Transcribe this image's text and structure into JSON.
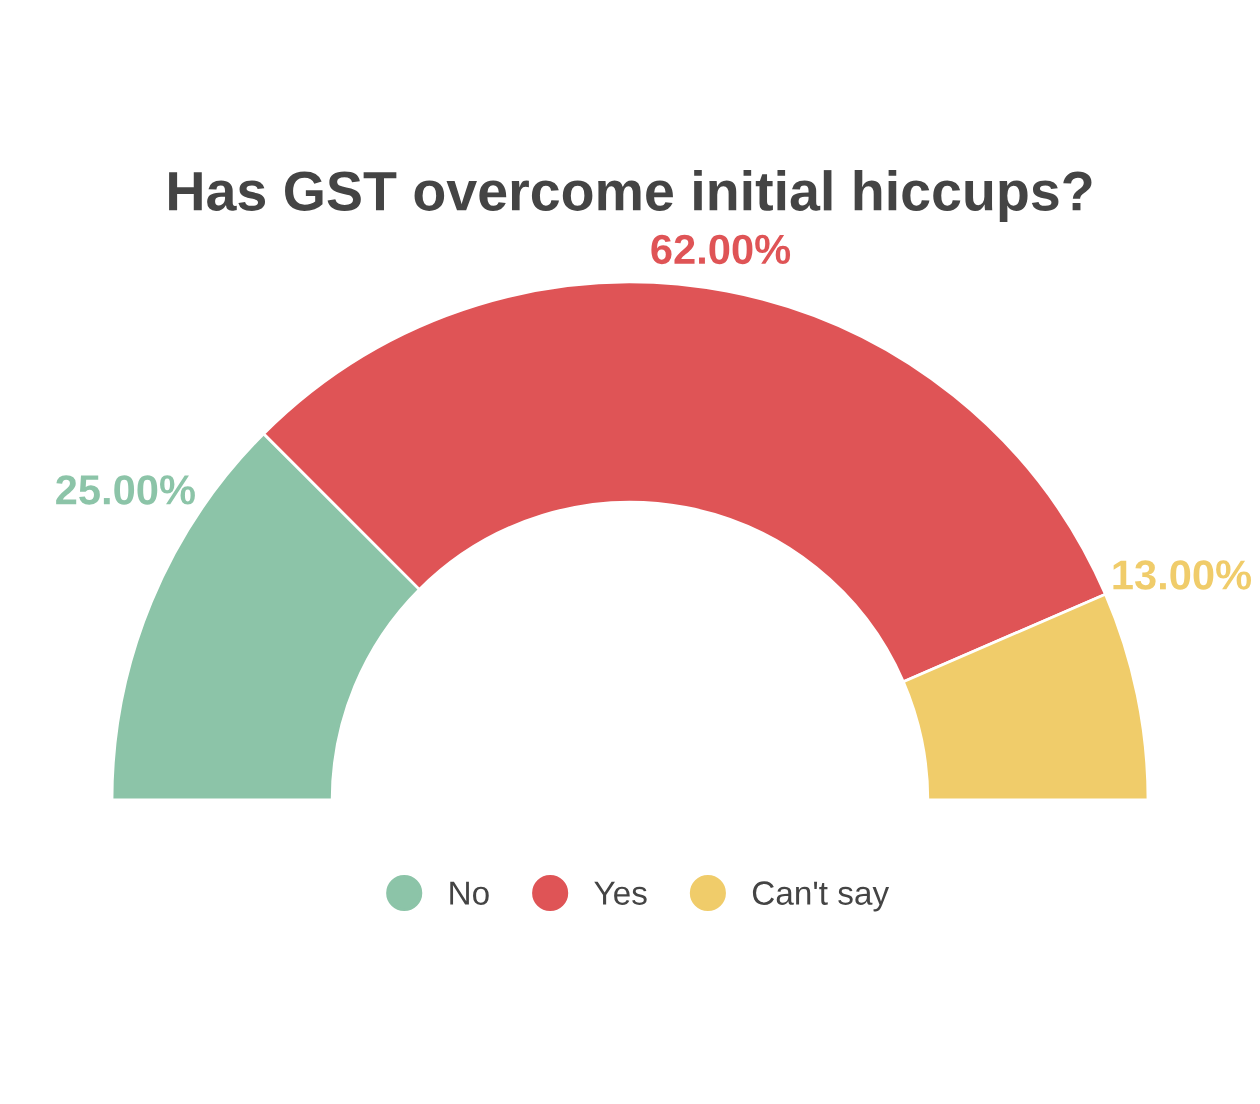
{
  "chart_data": {
    "type": "donut",
    "title": "Has GST overcome initial hiccups?",
    "categories": [
      "No",
      "Yes",
      "Can't say"
    ],
    "values": [
      25,
      62,
      13
    ],
    "colors": [
      "#8cc4a8",
      "#df5456",
      "#f0cc6a"
    ],
    "value_labels": [
      "25.00%",
      "62.00%",
      "13.00%"
    ],
    "legend": "bottom"
  }
}
